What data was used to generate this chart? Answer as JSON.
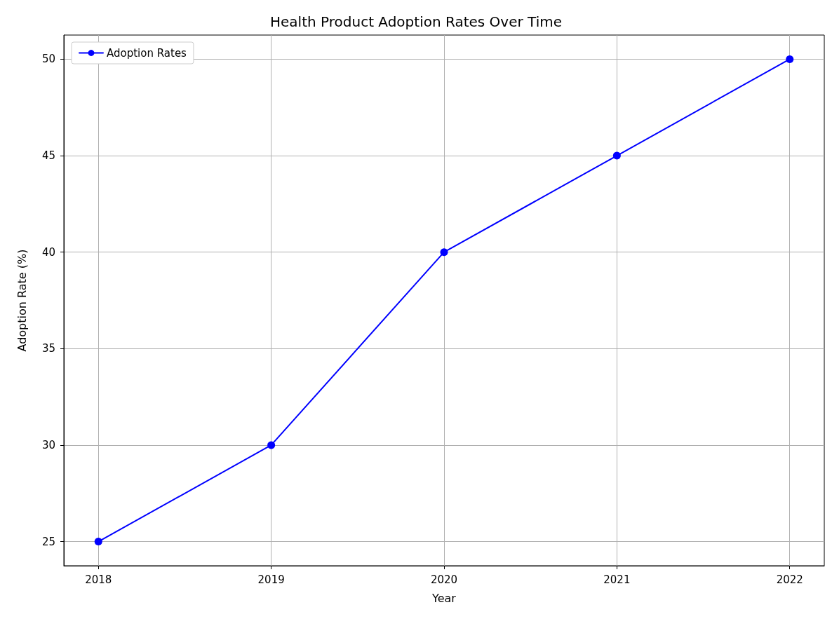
{
  "chart_data": {
    "type": "line",
    "title": "Health Product Adoption Rates Over Time",
    "xlabel": "Year",
    "ylabel": "Adoption Rate (%)",
    "x": [
      2018,
      2019,
      2020,
      2021,
      2022
    ],
    "series": [
      {
        "name": "Adoption Rates",
        "color": "#0000ff",
        "values": [
          25,
          30,
          40,
          45,
          50
        ]
      }
    ],
    "xlim": [
      2017.8,
      2022.2
    ],
    "xticks": [
      2018,
      2019,
      2020,
      2021,
      2022
    ],
    "ylim": [
      23.75,
      51.25
    ],
    "yticks": [
      25,
      30,
      35,
      40,
      45,
      50
    ],
    "grid": true,
    "legend": "top left",
    "marker": "circle",
    "line_style": "solid"
  }
}
